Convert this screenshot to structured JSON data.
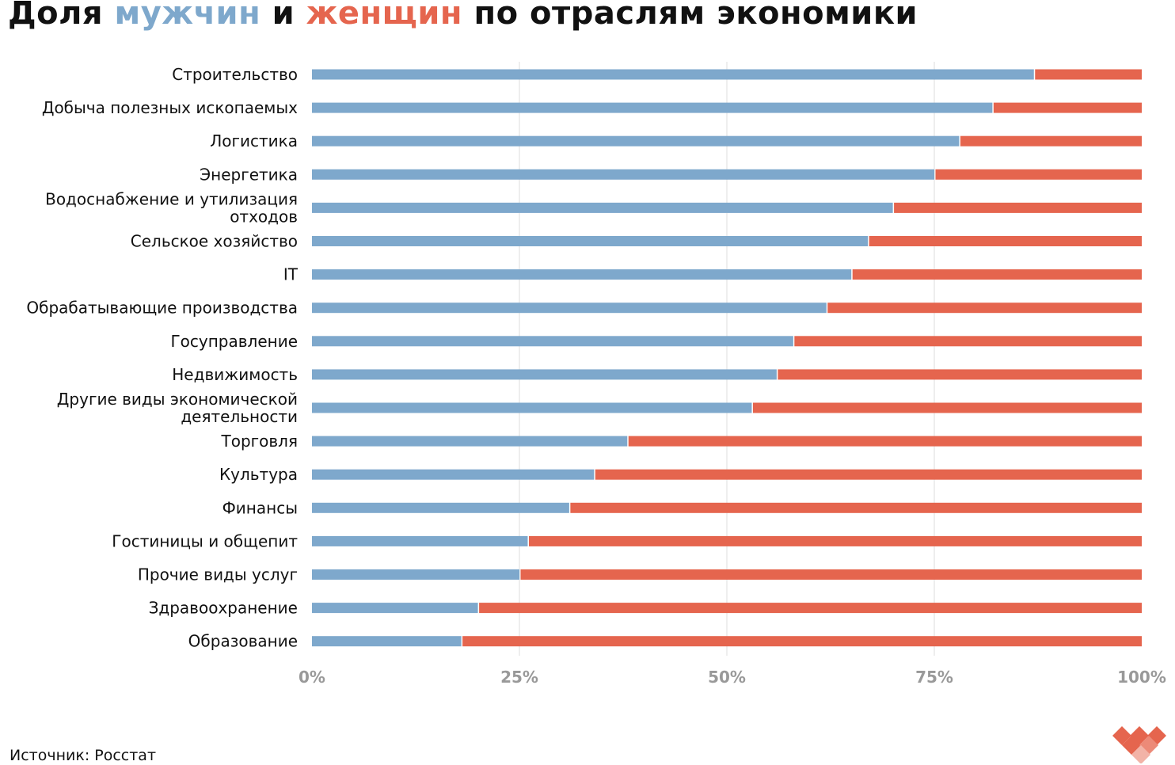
{
  "title": {
    "part1": "Доля ",
    "men": "мужчин",
    "part2": " и ",
    "women": "женщин",
    "part3": " по отраслям экономики"
  },
  "source": "Источник: Росстат",
  "colors": {
    "men": "#7ea8cc",
    "women": "#e5654e",
    "grid": "#dddddd"
  },
  "logo": "heart-diamonds-logo",
  "chart_data": {
    "type": "bar",
    "orientation": "horizontal",
    "stacked": true,
    "categories": [
      "Строительство",
      "Добыча полезных ископаемых",
      "Логистика",
      "Энергетика",
      "Водоснабжение и утилизация отходов",
      "Сельское хозяйство",
      "IT",
      "Обрабатывающие производства",
      "Госуправление",
      "Недвижимость",
      "Другие виды экономической деятельности",
      "Торговля",
      "Культура",
      "Финансы",
      "Гостиницы и общепит",
      "Прочие виды услуг",
      "Здравоохранение",
      "Образование"
    ],
    "category_lines": [
      [
        "Строительство"
      ],
      [
        "Добыча полезных ископаемых"
      ],
      [
        "Логистика"
      ],
      [
        "Энергетика"
      ],
      [
        "Водоснабжение и утилизация",
        "отходов"
      ],
      [
        "Сельское хозяйство"
      ],
      [
        "IT"
      ],
      [
        "Обрабатывающие производства"
      ],
      [
        "Госуправление"
      ],
      [
        "Недвижимость"
      ],
      [
        "Другие виды экономической",
        "деятельности"
      ],
      [
        "Торговля"
      ],
      [
        "Культура"
      ],
      [
        "Финансы"
      ],
      [
        "Гостиницы и общепит"
      ],
      [
        "Прочие виды услуг"
      ],
      [
        "Здравоохранение"
      ],
      [
        "Образование"
      ]
    ],
    "series": [
      {
        "name": "мужчин",
        "values": [
          87,
          82,
          78,
          75,
          70,
          67,
          65,
          62,
          58,
          56,
          53,
          38,
          34,
          31,
          26,
          25,
          20,
          18
        ]
      },
      {
        "name": "женщин",
        "values": [
          13,
          18,
          22,
          25,
          30,
          33,
          35,
          38,
          42,
          44,
          47,
          62,
          66,
          69,
          74,
          75,
          80,
          82
        ]
      }
    ],
    "xlim": [
      0,
      100
    ],
    "xticks": [
      "0%",
      "25%",
      "50%",
      "75%",
      "100%"
    ],
    "grid": true,
    "legend": "in title"
  }
}
